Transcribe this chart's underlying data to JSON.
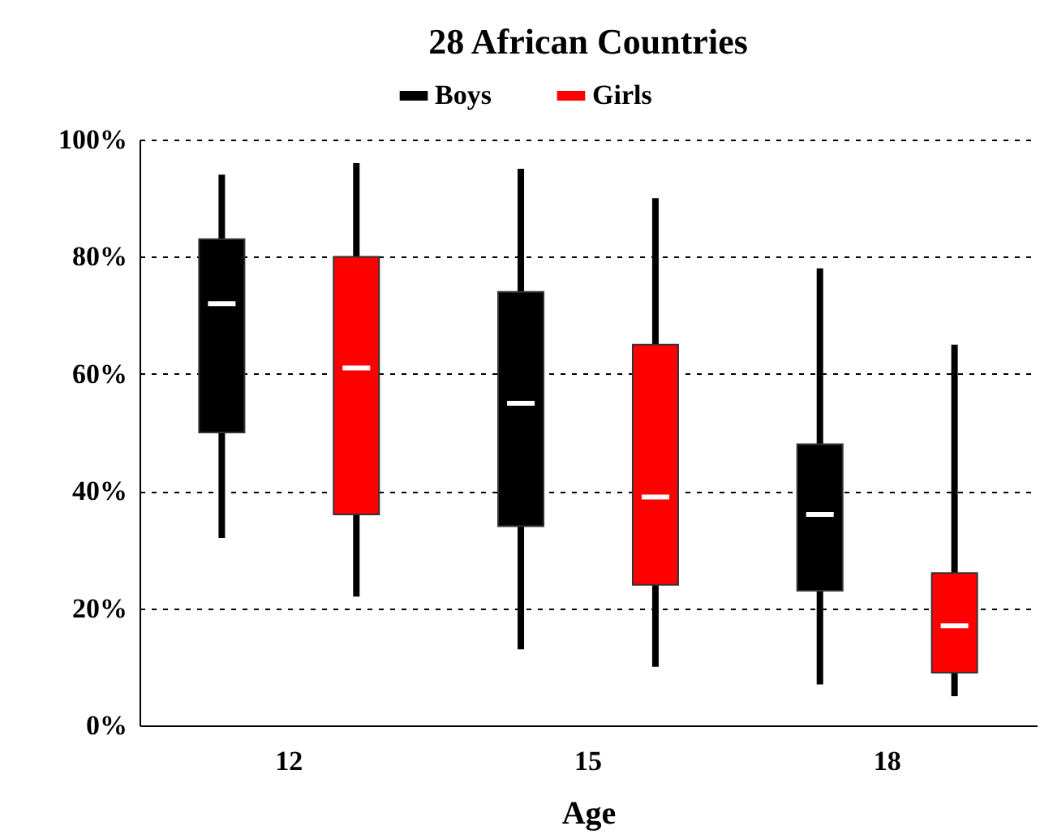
{
  "chart_data": {
    "type": "box",
    "title": "28 African Countries",
    "xlabel": "Age",
    "categories": [
      "12",
      "15",
      "18"
    ],
    "ylim": [
      0,
      100
    ],
    "yticks": [
      {
        "value": 0,
        "label": "0%"
      },
      {
        "value": 20,
        "label": "20%"
      },
      {
        "value": 40,
        "label": "40%"
      },
      {
        "value": 60,
        "label": "60%"
      },
      {
        "value": 80,
        "label": "80%"
      },
      {
        "value": 100,
        "label": "100%"
      }
    ],
    "grid": "y",
    "legend": "top",
    "series": [
      {
        "name": "Boys",
        "color": "#000000",
        "boxes": [
          {
            "low": 32,
            "q1": 50,
            "median": 72,
            "q3": 83,
            "high": 94
          },
          {
            "low": 13,
            "q1": 34,
            "median": 55,
            "q3": 74,
            "high": 95
          },
          {
            "low": 7,
            "q1": 23,
            "median": 36,
            "q3": 48,
            "high": 78
          }
        ]
      },
      {
        "name": "Girls",
        "color": "#ff0000",
        "boxes": [
          {
            "low": 22,
            "q1": 36,
            "median": 61,
            "q3": 80,
            "high": 96
          },
          {
            "low": 10,
            "q1": 24,
            "median": 39,
            "q3": 65,
            "high": 90
          },
          {
            "low": 5,
            "q1": 9,
            "median": 17,
            "q3": 26,
            "high": 65
          }
        ]
      }
    ]
  }
}
